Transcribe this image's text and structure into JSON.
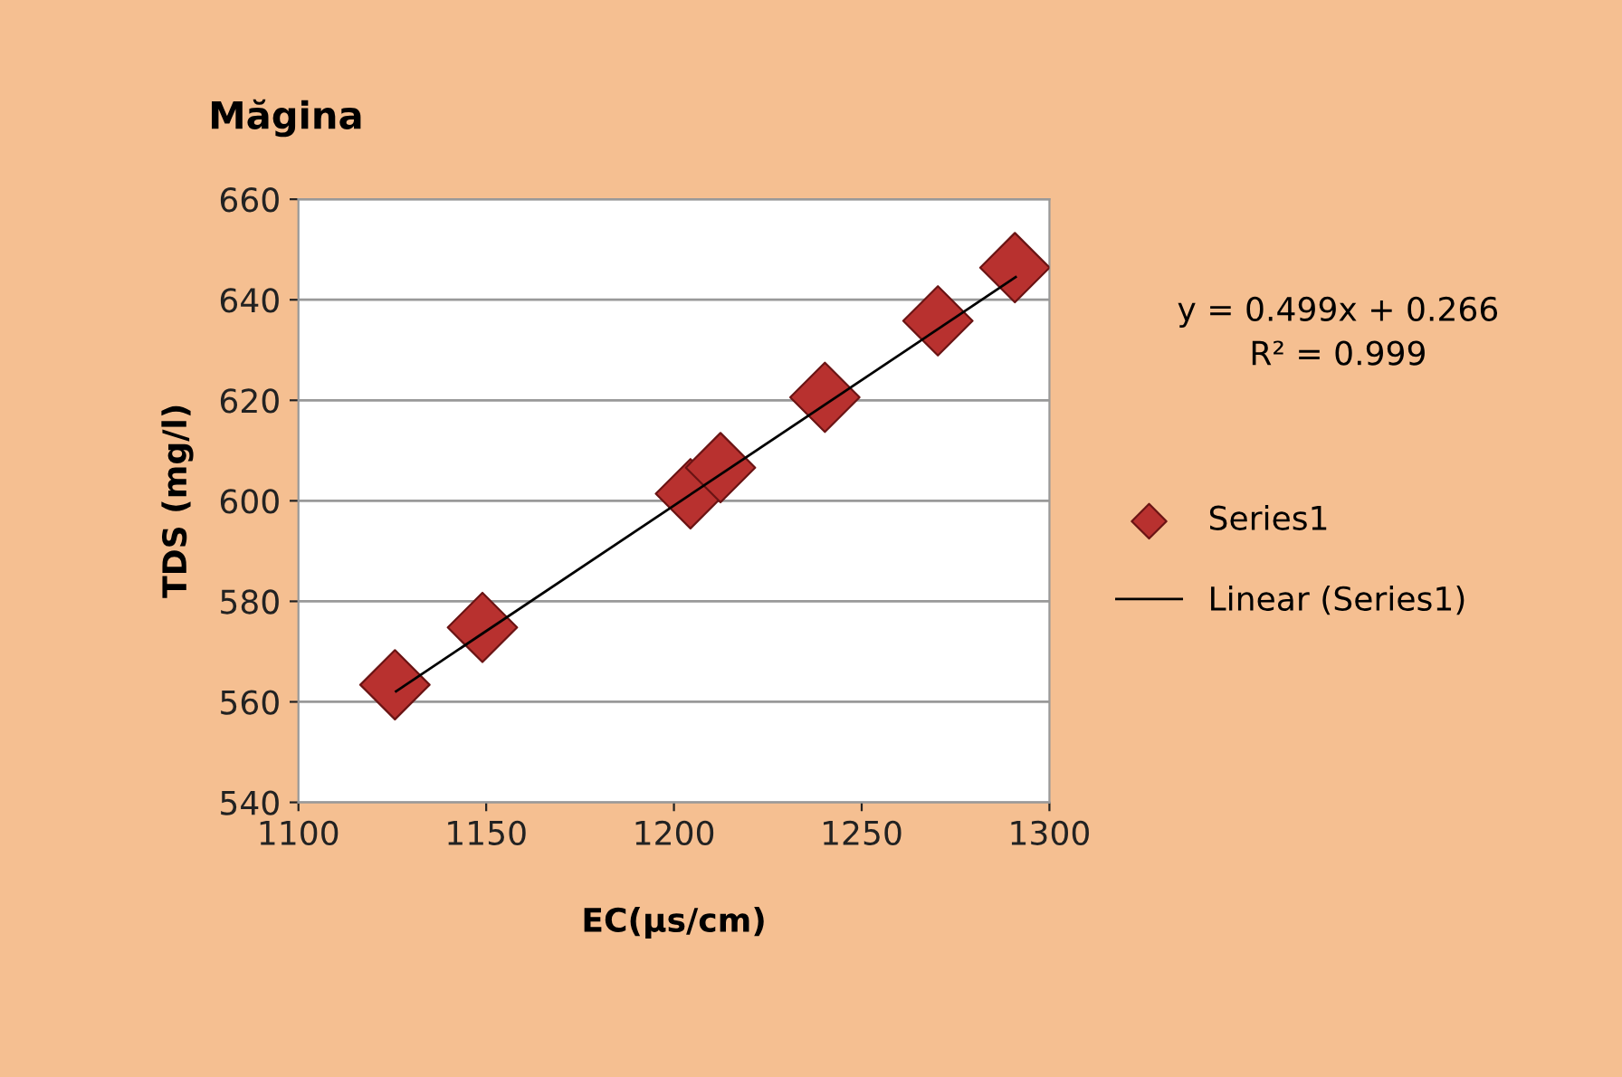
{
  "chart_data": {
    "type": "scatter",
    "title": "Măgina",
    "xlabel": "EC(µs/cm)",
    "ylabel": "TDS (mg/l)",
    "xlim": [
      1100,
      1300
    ],
    "xticks": [
      1100,
      1150,
      1200,
      1250,
      1300
    ],
    "ylim": [
      540,
      660
    ],
    "yticks": [
      540,
      560,
      580,
      600,
      620,
      640,
      660
    ],
    "grid": "y",
    "legend": "right",
    "marker": "diamond",
    "annotations": [
      "y = 0.499x + 0.266\nR² = 0.999"
    ],
    "series": [
      {
        "name": "Series1",
        "color": "#b8312f",
        "x": [
          1125.7,
          1149,
          1204.4,
          1212.4,
          1240.2,
          1270.3,
          1290.8
        ],
        "values": [
          563.4,
          574.8,
          601.4,
          606.6,
          620.6,
          635.8,
          646.4
        ]
      },
      {
        "name": "Linear (Series1)",
        "type": "line",
        "color": "#000000",
        "line_style": "solid",
        "marker": "none",
        "x": [
          1126,
          1291
        ],
        "values": [
          562.1,
          644.5
        ]
      }
    ]
  }
}
